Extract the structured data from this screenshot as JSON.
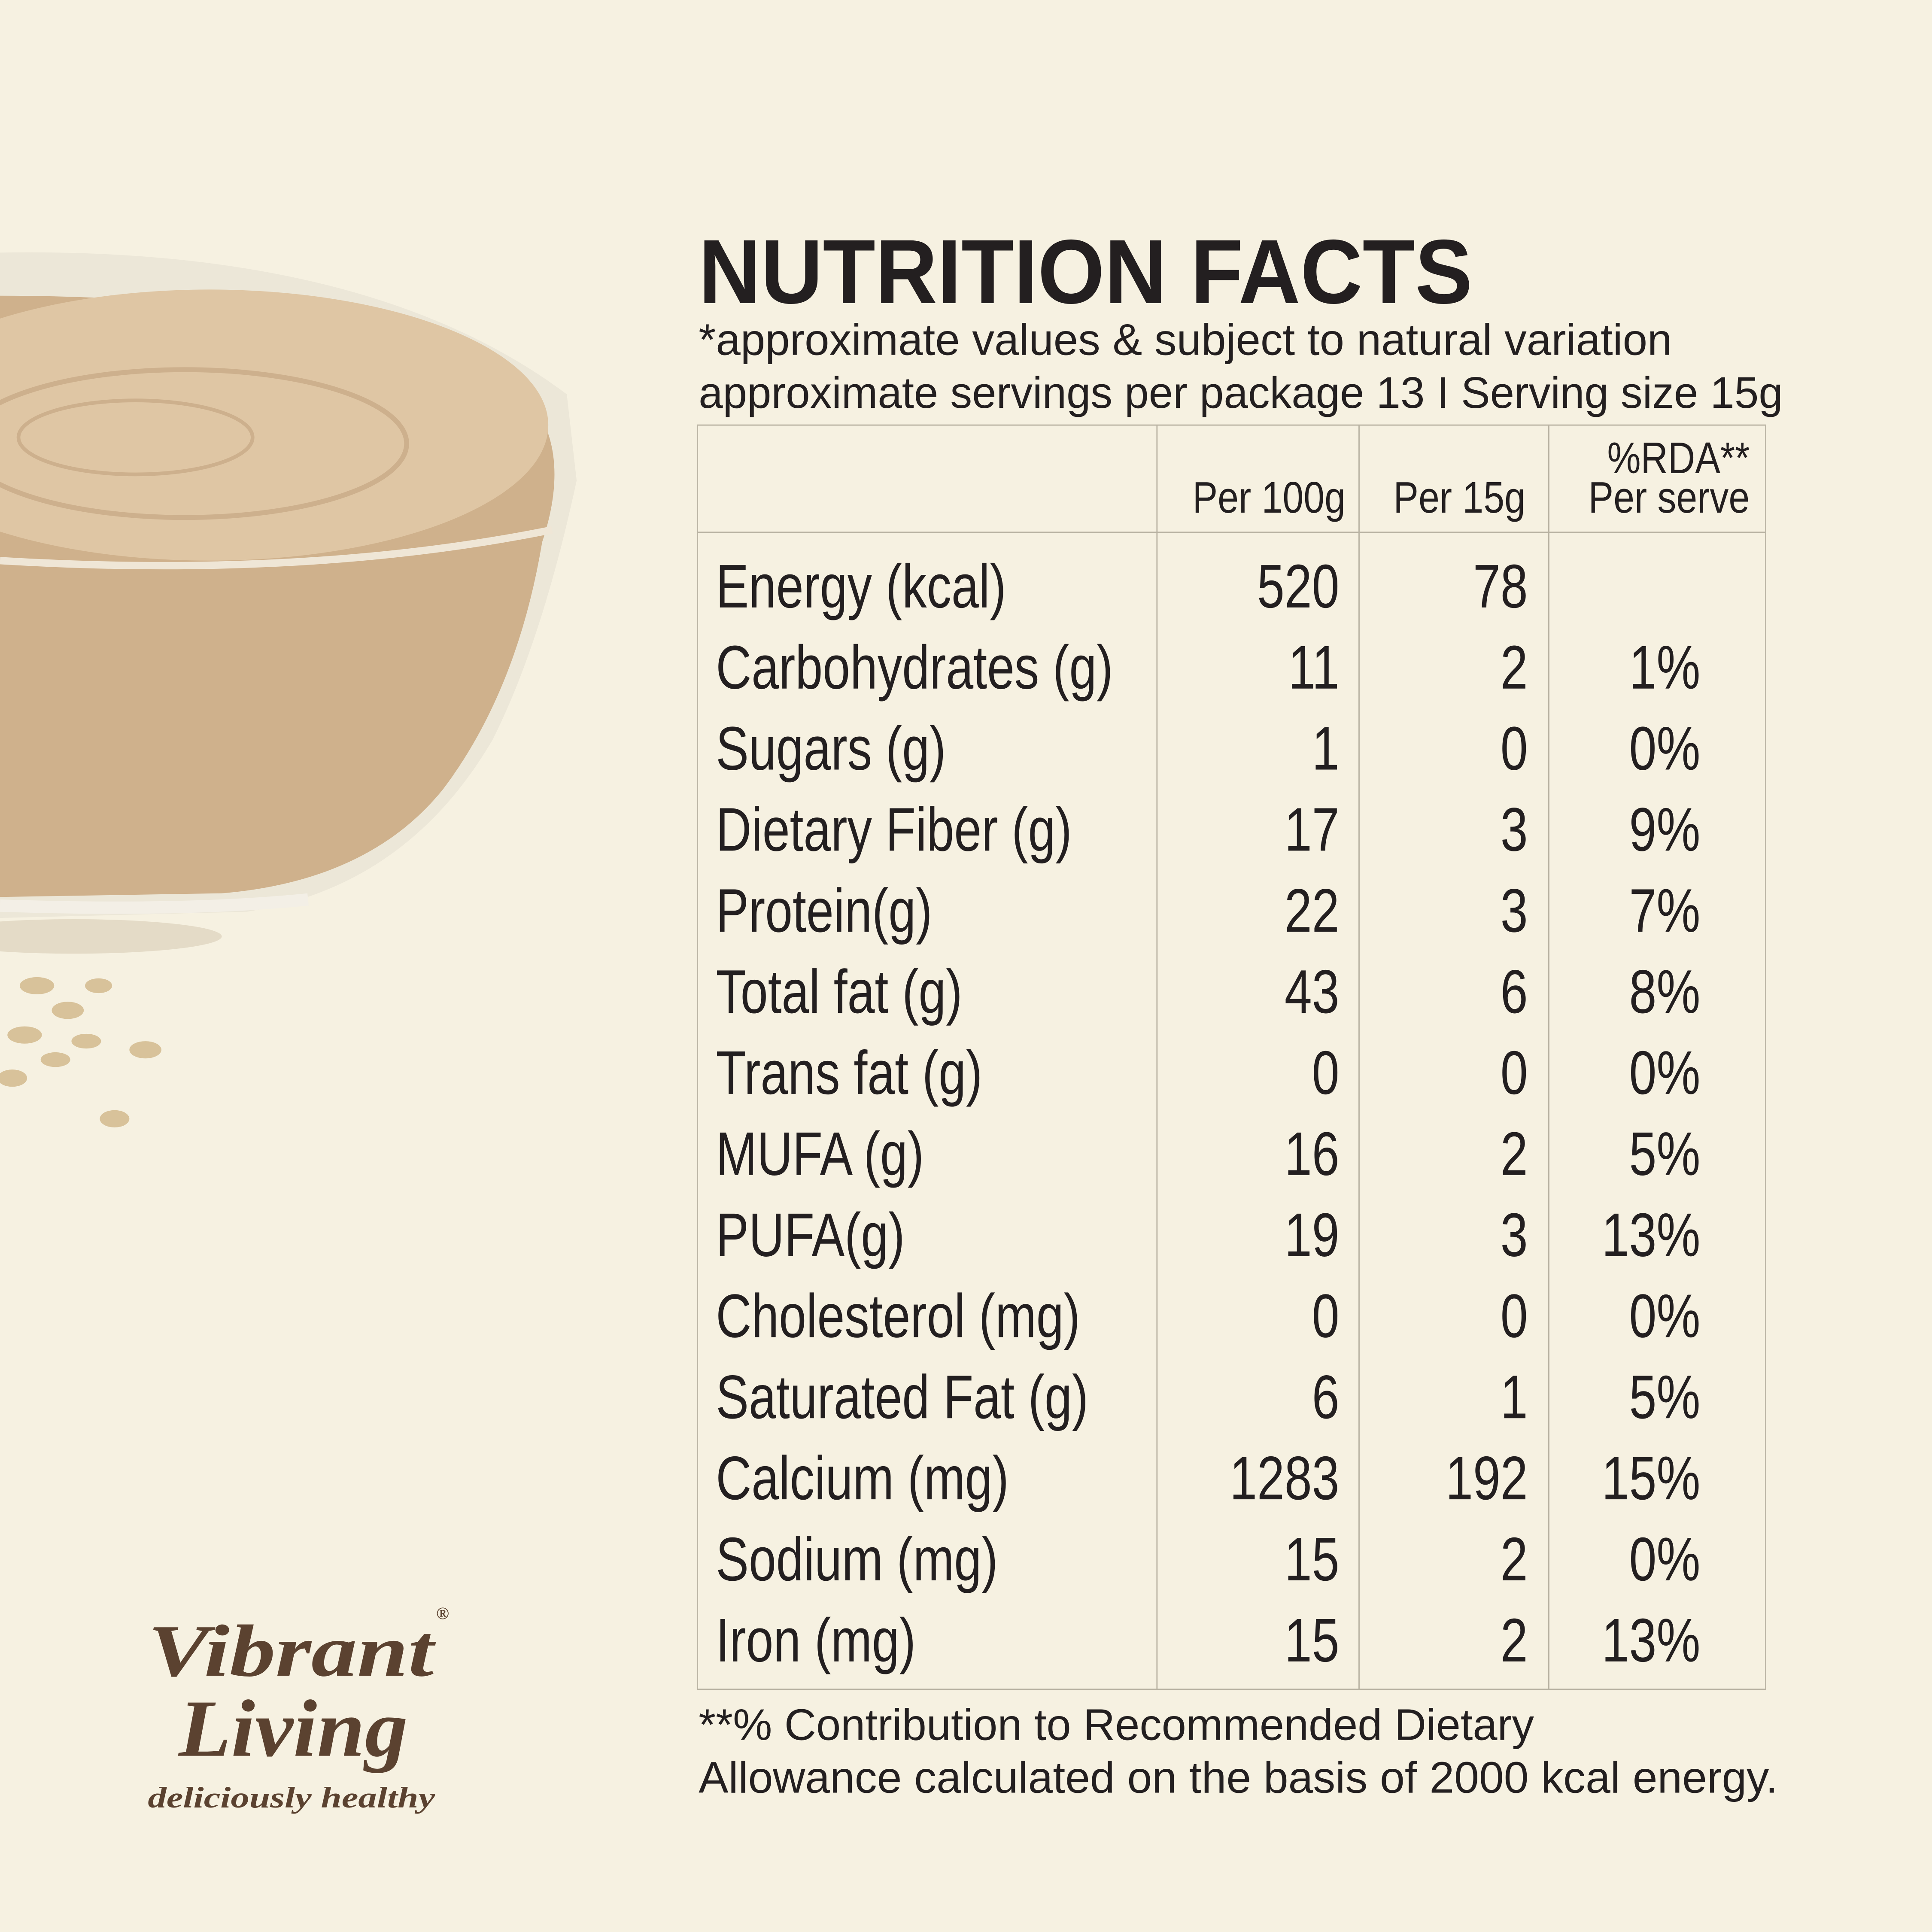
{
  "title": "NUTRITION FACTS",
  "subtitle": [
    "*approximate values & subject to natural variation",
    "approximate servings per package 13 I Serving size 15g"
  ],
  "table": {
    "headers": {
      "per100g": "Per 100g",
      "per15g": "Per 15g",
      "rda": [
        "%RDA**",
        "Per serve"
      ]
    },
    "rows": [
      {
        "name": "Energy (kcal)",
        "per100g": "520",
        "per15g": "78"
      },
      {
        "name": "Carbohydrates (g)",
        "per100g": "11",
        "per15g": "2",
        "rda": "1%"
      },
      {
        "name": "Sugars (g)",
        "per100g": "1",
        "per15g": "0",
        "rda": "0%"
      },
      {
        "name": "Dietary Fiber (g)",
        "per100g": "17",
        "per15g": "3",
        "rda": "9%"
      },
      {
        "name": "Protein(g)",
        "per100g": "22",
        "per15g": "3",
        "rda": "7%"
      },
      {
        "name": "Total fat (g)",
        "per100g": "43",
        "per15g": "6",
        "rda": "8%"
      },
      {
        "name": "Trans fat (g)",
        "per100g": "0",
        "per15g": "0",
        "rda": "0%"
      },
      {
        "name": "MUFA (g)",
        "per100g": "16",
        "per15g": "2",
        "rda": "5%"
      },
      {
        "name": "PUFA(g)",
        "per100g": "19",
        "per15g": "3",
        "rda": "13%"
      },
      {
        "name": "Cholesterol (mg)",
        "per100g": "0",
        "per15g": "0",
        "rda": "0%"
      },
      {
        "name": "Saturated Fat (g)",
        "per100g": "6",
        "per15g": "1",
        "rda": "5%"
      },
      {
        "name": "Calcium (mg)",
        "per100g": "1283",
        "per15g": "192",
        "rda": "15%"
      },
      {
        "name": "Sodium (mg)",
        "per100g": "15",
        "per15g": "2",
        "rda": "0%"
      },
      {
        "name": "Iron (mg)",
        "per100g": "15",
        "per15g": "2",
        "rda": "13%"
      }
    ]
  },
  "footnote": [
    "**% Contribution to Recommended Dietary",
    "Allowance calculated on the basis of 2000 kcal energy."
  ],
  "brand": {
    "line1": "Vibrant",
    "line2": "Living",
    "registered": "®",
    "tagline": "deliciously healthy"
  }
}
